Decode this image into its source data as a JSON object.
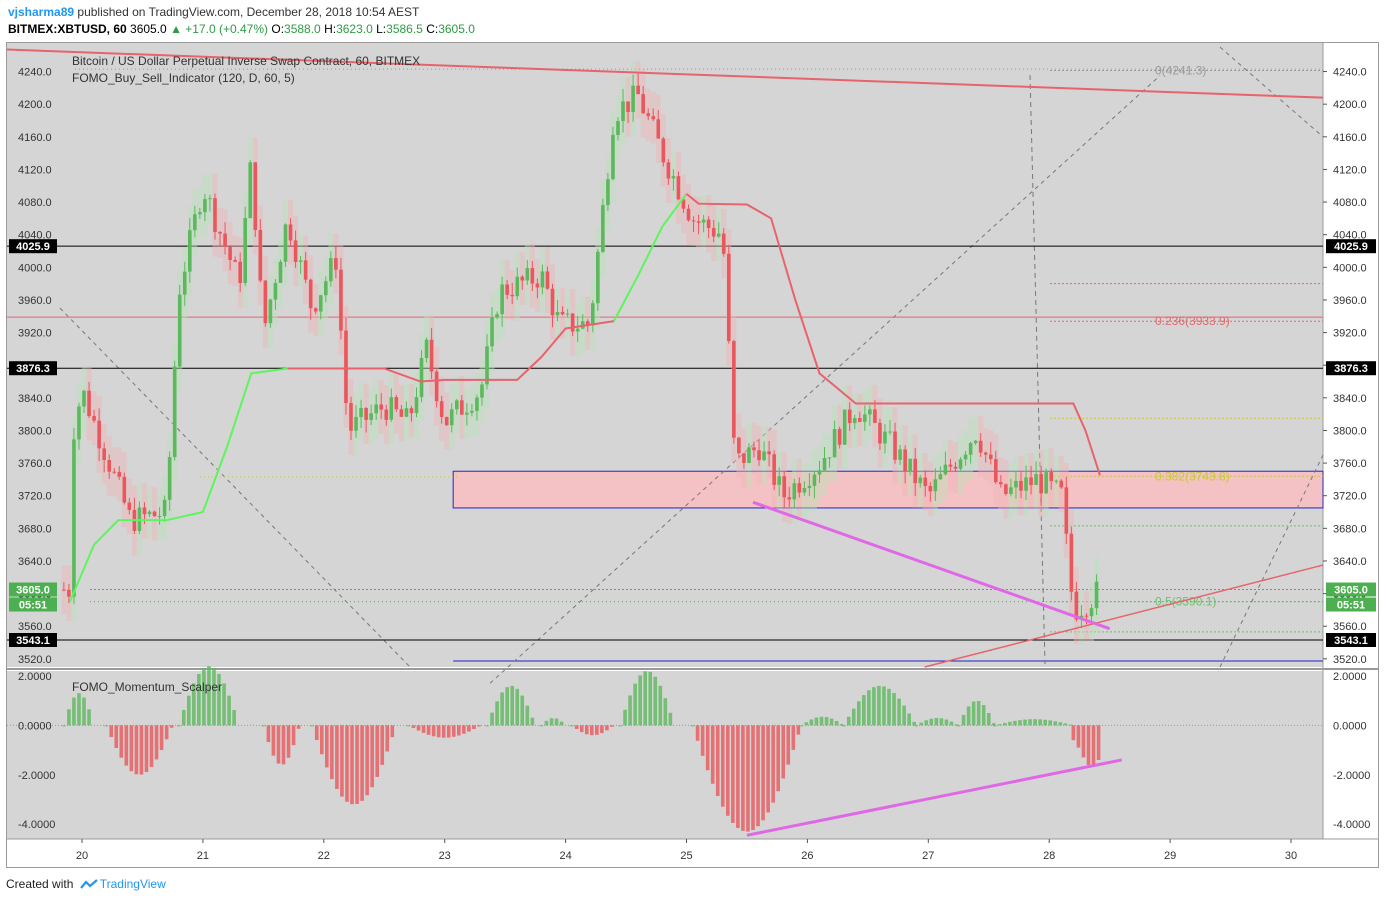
{
  "header": {
    "user": "vjsharma89",
    "published": "published on TradingView.com, December 28, 2018 10:54 AEST",
    "symbol": "BITMEX:XBTUSD, 60",
    "last": "3605.0",
    "change": "▲ +17.0 (+0.47%)",
    "o_label": "O:",
    "o": "3588.0",
    "h_label": "H:",
    "h": "3623.0",
    "l_label": "L:",
    "l": "3586.5",
    "c_label": "C:",
    "c": "3605.0"
  },
  "legend": {
    "main_title": "Bitcoin / US Dollar Perpetual Inverse Swap Contract, 60, BITMEX",
    "indicator": "FOMO_Buy_Sell_Indicator (120, D, 60, 5)",
    "sub_indicator": "FOMO_Momentum_Scalper"
  },
  "footer": {
    "created": "Created with",
    "brand": "TradingView"
  },
  "colors": {
    "bull": "#5cb85c",
    "bear": "#e9575d",
    "trend_line": "#e8636b",
    "green_line": "#5df55d",
    "magenta": "#e067e6",
    "box_fill": "#f4c2c4",
    "box_border": "#2424c8",
    "price_tag": "#4caf50",
    "level_tag": "#000000",
    "fib_red": "#e06b6b",
    "fib_yellow": "#c8c83c",
    "fib_green": "#6bc26b",
    "fib_gray": "#9a9a9a"
  },
  "chart_data": [
    {
      "type": "candlestick",
      "title": "Bitcoin / US Dollar Perpetual Inverse Swap Contract, 60, BITMEX",
      "x_axis": {
        "ticks": [
          "20",
          "21",
          "22",
          "23",
          "24",
          "25",
          "26",
          "27",
          "28",
          "29",
          "30"
        ]
      },
      "y_axis": {
        "range": [
          3510,
          4275
        ],
        "ticks": [
          "4240.0",
          "4200.0",
          "4160.0",
          "4120.0",
          "4080.0",
          "4040.0",
          "4000.0",
          "3960.0",
          "3920.0",
          "3880.0",
          "3840.0",
          "3800.0",
          "3760.0",
          "3720.0",
          "3680.0",
          "3640.0",
          "3600.0",
          "3560.0",
          "3520.0"
        ]
      },
      "price_tags": [
        {
          "label": "4025.9",
          "value": 4025.9
        },
        {
          "label": "3876.3",
          "value": 3876.3
        },
        {
          "label": "3543.1",
          "value": 3543.1
        }
      ],
      "current_price": {
        "label": "3605.0",
        "value": 3605.0,
        "countdown": "05:51"
      },
      "fib_levels": [
        {
          "label": "0(4241.3)",
          "value": 4241.3
        },
        {
          "label": "0.236(3933.9)",
          "value": 3933.9
        },
        {
          "label": "0.382(3743.8)",
          "value": 3743.8
        },
        {
          "label": "0.5(3590.1)",
          "value": 3590.1
        }
      ],
      "zones": [
        {
          "from": 3705,
          "to": 3750
        }
      ],
      "path": [
        [
          19.9,
          3780
        ],
        [
          20.0,
          3850
        ],
        [
          20.4,
          3690
        ],
        [
          20.7,
          3700
        ],
        [
          20.8,
          3970
        ],
        [
          21.0,
          4100
        ],
        [
          21.3,
          3980
        ],
        [
          21.4,
          4130
        ],
        [
          21.5,
          3920
        ],
        [
          21.7,
          4060
        ],
        [
          21.9,
          3950
        ],
        [
          22.1,
          4010
        ],
        [
          22.2,
          3800
        ],
        [
          22.5,
          3830
        ],
        [
          22.7,
          3810
        ],
        [
          22.85,
          3900
        ],
        [
          23.0,
          3810
        ],
        [
          23.3,
          3850
        ],
        [
          23.45,
          3970
        ],
        [
          23.8,
          3990
        ],
        [
          23.95,
          3930
        ],
        [
          24.2,
          3930
        ],
        [
          24.4,
          4190
        ],
        [
          24.6,
          4210
        ],
        [
          24.8,
          4140
        ],
        [
          25.05,
          4060
        ],
        [
          25.3,
          4040
        ],
        [
          25.4,
          3760
        ],
        [
          25.6,
          3780
        ],
        [
          25.8,
          3720
        ],
        [
          26.1,
          3760
        ],
        [
          26.4,
          3830
        ],
        [
          26.7,
          3780
        ],
        [
          27.0,
          3720
        ],
        [
          27.4,
          3800
        ],
        [
          27.6,
          3720
        ],
        [
          27.9,
          3740
        ],
        [
          28.1,
          3720
        ],
        [
          28.2,
          3580
        ],
        [
          28.3,
          3588
        ],
        [
          28.42,
          3605
        ]
      ]
    },
    {
      "type": "bar",
      "title": "FOMO_Momentum_Scalper",
      "y_axis": {
        "range": [
          -4.6,
          2.2
        ],
        "ticks": [
          "2.0000",
          "0.0000",
          "-2.0000",
          "-4.0000"
        ]
      },
      "waves": [
        {
          "from": 19.85,
          "to": 20.1,
          "peak": 1.3
        },
        {
          "from": 20.2,
          "to": 20.75,
          "peak": -2.0
        },
        {
          "from": 20.8,
          "to": 21.3,
          "peak": 2.4
        },
        {
          "from": 21.5,
          "to": 21.8,
          "peak": -1.6
        },
        {
          "from": 21.9,
          "to": 22.6,
          "peak": -3.2
        },
        {
          "from": 22.7,
          "to": 23.3,
          "peak": -0.5
        },
        {
          "from": 23.35,
          "to": 23.75,
          "peak": 1.6
        },
        {
          "from": 23.8,
          "to": 24.0,
          "peak": 0.3
        },
        {
          "from": 24.05,
          "to": 24.4,
          "peak": -0.4
        },
        {
          "from": 24.45,
          "to": 24.9,
          "peak": 2.2
        },
        {
          "from": 25.05,
          "to": 25.95,
          "peak": -4.3
        },
        {
          "from": 25.95,
          "to": 26.3,
          "peak": 0.35
        },
        {
          "from": 26.3,
          "to": 26.9,
          "peak": 1.6
        },
        {
          "from": 26.9,
          "to": 27.25,
          "peak": 0.3
        },
        {
          "from": 27.25,
          "to": 27.55,
          "peak": 1.0
        },
        {
          "from": 27.55,
          "to": 28.2,
          "peak": 0.25
        }
      ],
      "last_bars": [
        -0.6,
        -0.9,
        -1.3,
        -1.6,
        -1.6,
        -1.4
      ]
    }
  ]
}
